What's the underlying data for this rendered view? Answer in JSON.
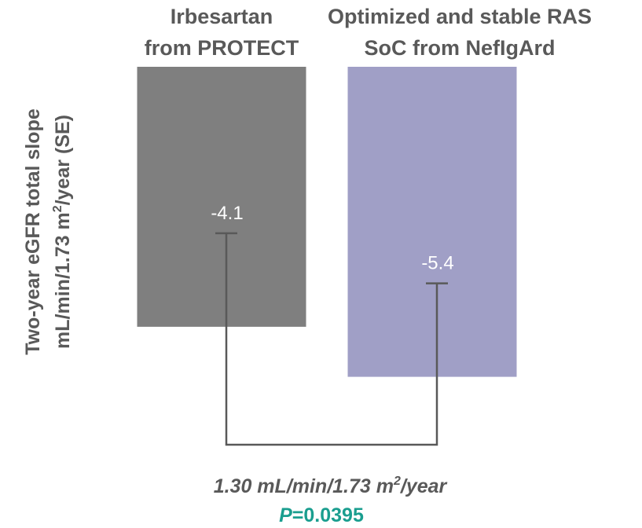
{
  "chart_data": {
    "type": "bar",
    "orientation": "vertical-inverted",
    "categories": [
      [
        "Irbesartan",
        "from PROTECT"
      ],
      [
        "Optimized and stable RAS",
        "SoC from NefIgArd"
      ]
    ],
    "values": [
      -4.1,
      -5.4
    ],
    "data_labels": [
      "-4.1",
      "-5.4"
    ],
    "colors": [
      "#7f7f7f",
      "#a09fc6"
    ],
    "ylabel": {
      "line1": "Two-year eGFR total slope",
      "line2_pre": "mL/min/1.73 m",
      "line2_sup": "2",
      "line2_post": "/year (SE)"
    },
    "ylim": [
      0,
      -7.5
    ],
    "grid": false,
    "legend": "none",
    "comparison": {
      "difference": {
        "pre": "1.30 mL/min/1.73 m",
        "sup": "2",
        "post": "/year"
      },
      "p_value": {
        "symbol": "P",
        "text": "=0.0395"
      }
    }
  }
}
